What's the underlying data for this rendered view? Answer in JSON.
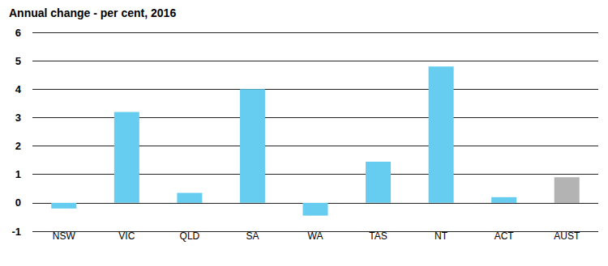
{
  "chart_data": {
    "type": "bar",
    "title": "Annual change - per cent, 2016",
    "categories": [
      "NSW",
      "VIC",
      "QLD",
      "SA",
      "WA",
      "TAS",
      "NT",
      "ACT",
      "AUST"
    ],
    "values": [
      -0.2,
      3.2,
      0.35,
      4.0,
      -0.45,
      1.45,
      4.8,
      0.2,
      0.9
    ],
    "colors": [
      "#66cdf0",
      "#66cdf0",
      "#66cdf0",
      "#66cdf0",
      "#66cdf0",
      "#66cdf0",
      "#66cdf0",
      "#66cdf0",
      "#b3b3b3"
    ],
    "ylim": [
      -1,
      6
    ],
    "yticks": [
      -1,
      0,
      1,
      2,
      3,
      4,
      5,
      6
    ],
    "grid": true
  }
}
